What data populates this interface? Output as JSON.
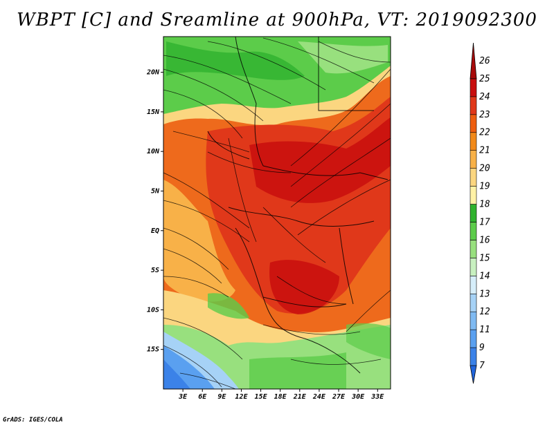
{
  "title": "WBPT [C] and Sreamline at 900hPa, VT: 2019092300",
  "credit": "GrADS: IGES/COLA",
  "map": {
    "lat_ticks": [
      "20N",
      "15N",
      "10N",
      "5N",
      "EQ",
      "5S",
      "10S",
      "15S"
    ],
    "lon_ticks": [
      "3E",
      "6E",
      "9E",
      "12E",
      "15E",
      "18E",
      "21E",
      "24E",
      "27E",
      "30E",
      "33E"
    ],
    "lat_range": [
      -20,
      24.5
    ],
    "lon_range": [
      0,
      35
    ]
  },
  "colorbar": {
    "labels": [
      "7",
      "9",
      "11",
      "12",
      "13",
      "14",
      "15",
      "16",
      "17",
      "18",
      "19",
      "20",
      "21",
      "22",
      "23",
      "24",
      "25",
      "26"
    ],
    "colors": [
      "#2266dd",
      "#3b82e8",
      "#5aa0f0",
      "#7fbaf2",
      "#a6d2f6",
      "#d6eefa",
      "#c8f0c0",
      "#98e07e",
      "#5ccc4a",
      "#2fb22e",
      "#fff2a6",
      "#fbd680",
      "#f8b148",
      "#f28a1a",
      "#ee5e10",
      "#e0381a",
      "#c80e0e",
      "#a80a0a"
    ]
  }
}
